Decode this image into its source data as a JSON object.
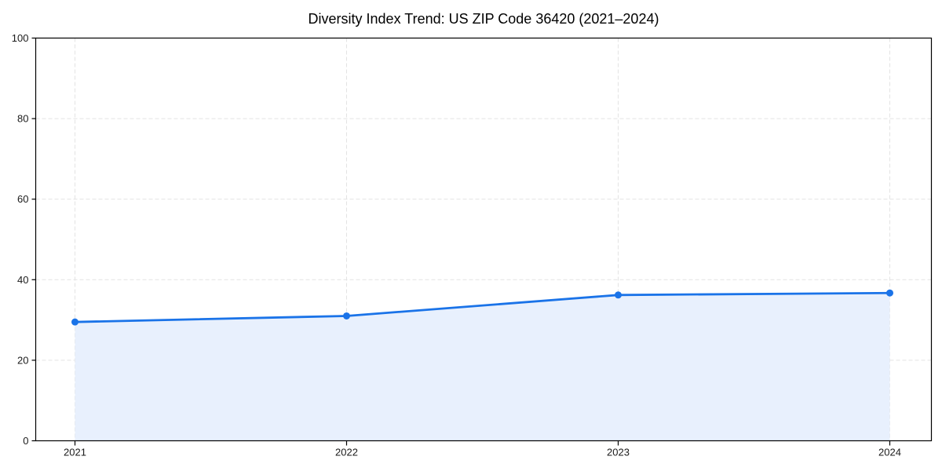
{
  "chart_data": {
    "type": "area",
    "title": "Diversity Index Trend: US ZIP Code 36420 (2021–2024)",
    "x": [
      2021,
      2022,
      2023,
      2024
    ],
    "xtick_labels": [
      "2021",
      "2022",
      "2023",
      "2024"
    ],
    "series": [
      {
        "name": "Diversity Index",
        "values": [
          29.5,
          31.0,
          36.2,
          36.7
        ]
      }
    ],
    "xlabel": "",
    "ylabel": "",
    "ylim": [
      0,
      100
    ],
    "yticks": [
      0,
      20,
      40,
      60,
      80,
      100
    ],
    "grid": true,
    "grid_style": "dashed",
    "legend": "none",
    "marker": "circle",
    "colors": {
      "line": "#1a73e8",
      "marker": "#1a73e8",
      "fill": "#e8f0fd",
      "grid": "#e3e3e3",
      "spine": "#000000",
      "tick_label": "#1a1a1a",
      "title": "#000000",
      "background": "#ffffff"
    }
  }
}
